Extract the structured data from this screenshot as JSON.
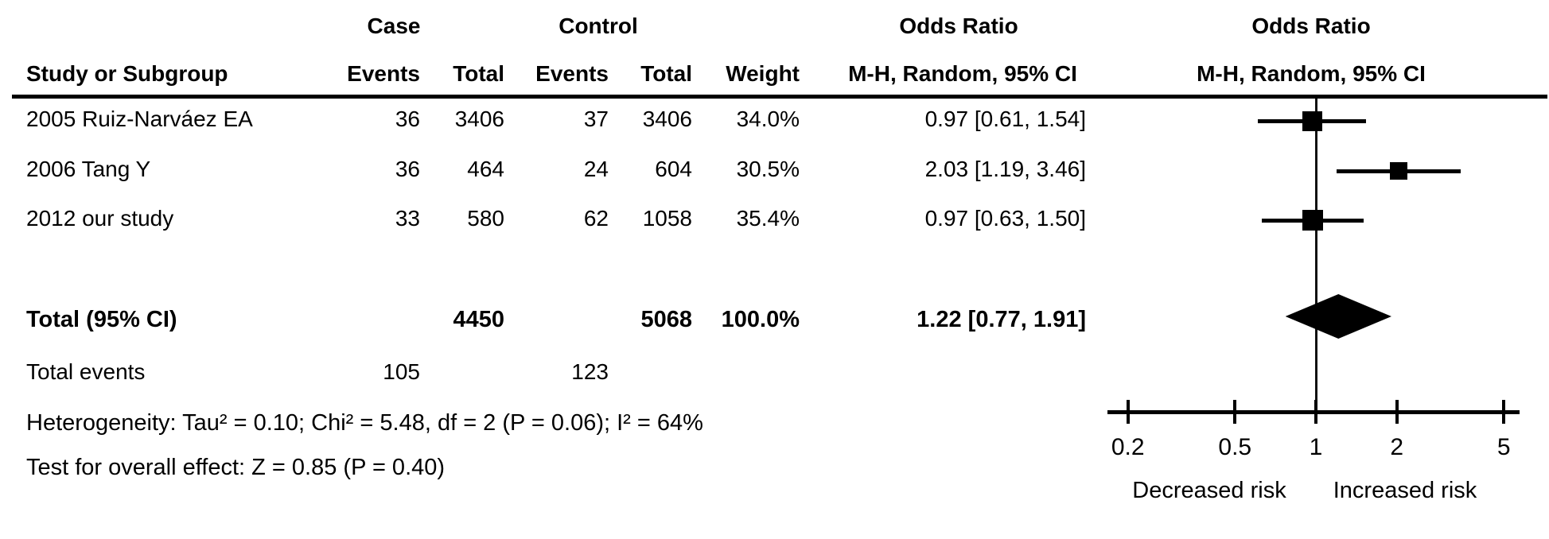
{
  "table": {
    "group_headers": {
      "case": "Case",
      "control": "Control",
      "odds_ratio_text": "Odds Ratio",
      "odds_ratio_plot": "Odds Ratio"
    },
    "column_headers": {
      "study": "Study or Subgroup",
      "case_events": "Events",
      "case_total": "Total",
      "control_events": "Events",
      "control_total": "Total",
      "weight": "Weight",
      "or_method": "M-H, Random, 95% CI",
      "or_method_plot": "M-H, Random, 95% CI"
    },
    "rows": [
      {
        "study": "2005 Ruiz-Narváez EA",
        "case_events": "36",
        "case_total": "3406",
        "control_events": "37",
        "control_total": "3406",
        "weight": "34.0%",
        "or_ci": "0.97 [0.61, 1.54]"
      },
      {
        "study": "2006 Tang Y",
        "case_events": "36",
        "case_total": "464",
        "control_events": "24",
        "control_total": "604",
        "weight": "30.5%",
        "or_ci": "2.03 [1.19, 3.46]"
      },
      {
        "study": "2012 our study",
        "case_events": "33",
        "case_total": "580",
        "control_events": "62",
        "control_total": "1058",
        "weight": "35.4%",
        "or_ci": "0.97 [0.63, 1.50]"
      }
    ],
    "total_row": {
      "label": "Total (95% CI)",
      "case_total": "4450",
      "control_total": "5068",
      "weight": "100.0%",
      "or_ci": "1.22 [0.77, 1.91]"
    },
    "total_events": {
      "label": "Total events",
      "case": "105",
      "control": "123"
    },
    "heterogeneity": "Heterogeneity: Tau² = 0.10; Chi² = 5.48, df = 2 (P = 0.06); I² = 64%",
    "overall_effect": "Test for overall effect: Z = 0.85 (P = 0.40)"
  },
  "chart_data": {
    "type": "scatter",
    "subtype": "forest-plot",
    "x_scale": "log",
    "x_ticks": [
      0.2,
      0.5,
      1,
      2,
      5
    ],
    "x_tick_labels": [
      "0.2",
      "0.5",
      "1",
      "2",
      "5"
    ],
    "null_line_value": 1,
    "xlim": [
      0.2,
      5
    ],
    "studies": [
      {
        "name": "2005 Ruiz-Narváez EA",
        "or": 0.97,
        "ci_low": 0.61,
        "ci_high": 1.54,
        "weight_pct": 34.0
      },
      {
        "name": "2006 Tang Y",
        "or": 2.03,
        "ci_low": 1.19,
        "ci_high": 3.46,
        "weight_pct": 30.5
      },
      {
        "name": "2012 our study",
        "or": 0.97,
        "ci_low": 0.63,
        "ci_high": 1.5,
        "weight_pct": 35.4
      }
    ],
    "overall": {
      "or": 1.22,
      "ci_low": 0.77,
      "ci_high": 1.91,
      "weight_pct": 100.0
    },
    "axis_label_left": "Decreased risk",
    "axis_label_right": "Increased risk",
    "marker_color": "#000000",
    "line_color": "#000000"
  }
}
